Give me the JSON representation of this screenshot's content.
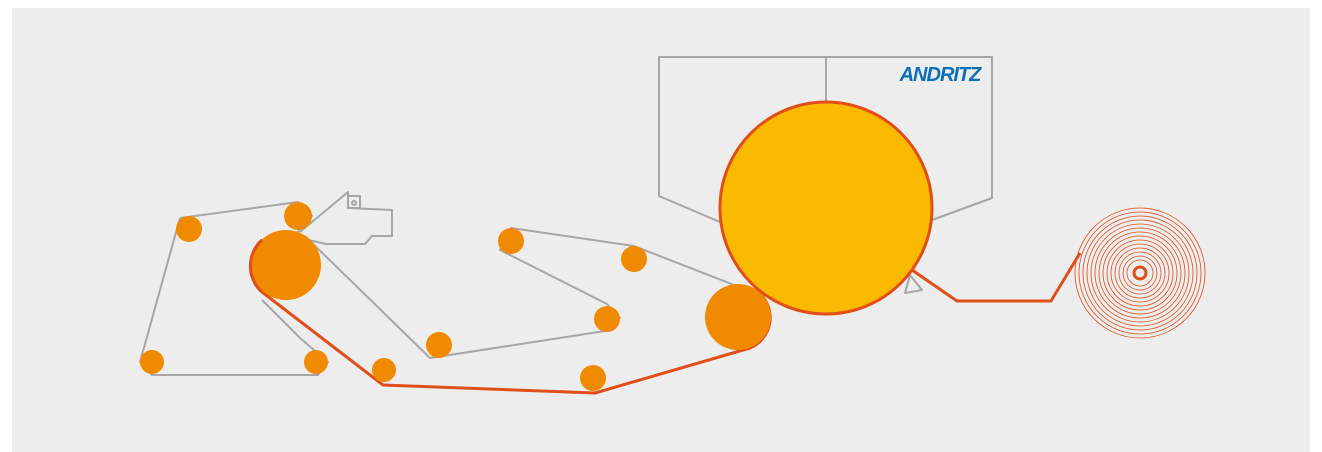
{
  "logo": {
    "text": "ANDRITZ"
  }
}
